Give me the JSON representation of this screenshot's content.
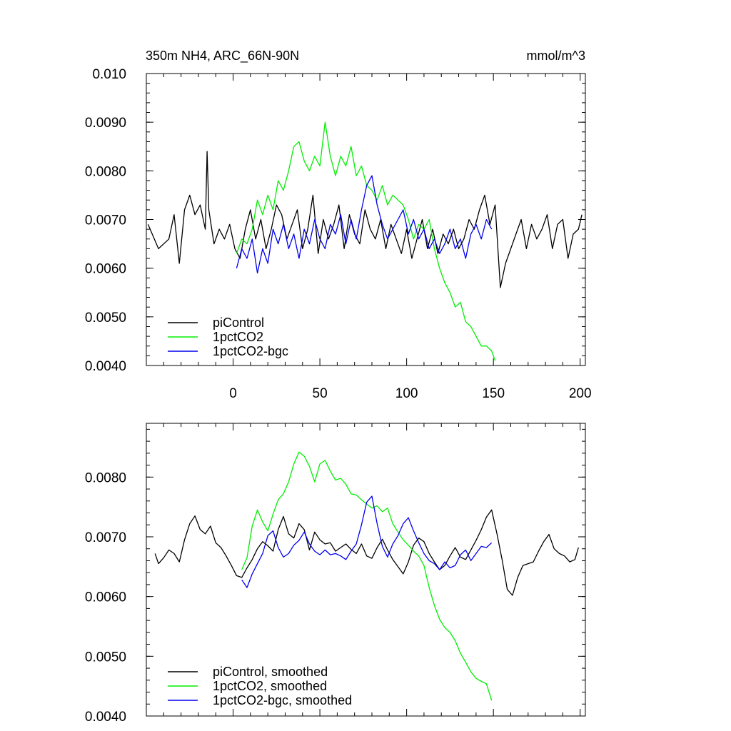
{
  "chart_data": [
    {
      "type": "line",
      "title_left": "350m NH4, ARC_66N-90N",
      "title_right": "mmol/m^3",
      "xlabel": "",
      "ylabel": "",
      "xlim": [
        -50,
        203
      ],
      "ylim": [
        0.004,
        0.01
      ],
      "x_ticks": [
        0,
        50,
        100,
        150,
        200
      ],
      "x_tick_labels": [
        "0",
        "50",
        "100",
        "150",
        "200"
      ],
      "y_ticks": [
        0.004,
        0.005,
        0.006,
        0.007,
        0.008,
        0.009,
        0.01
      ],
      "y_tick_labels": [
        "0.0040",
        "0.0050",
        "0.0060",
        "0.0070",
        "0.0080",
        "0.0090",
        "0.010"
      ],
      "legend_position": "bottom-left",
      "series": [
        {
          "name": "piControl",
          "color": "#000000",
          "x": [
            -49,
            -43,
            -37,
            -34,
            -31,
            -28,
            -25,
            -22,
            -19,
            -16,
            -15,
            -14,
            -11,
            -8,
            -5,
            -2,
            1,
            4,
            7,
            10,
            13,
            16,
            19,
            22,
            25,
            28,
            31,
            34,
            37,
            40,
            43,
            46,
            49,
            52,
            55,
            58,
            61,
            64,
            67,
            70,
            73,
            76,
            79,
            82,
            85,
            88,
            91,
            94,
            97,
            100,
            103,
            106,
            109,
            112,
            115,
            118,
            121,
            124,
            127,
            130,
            133,
            136,
            139,
            142,
            145,
            148,
            151,
            154,
            157,
            160,
            163,
            166,
            169,
            172,
            175,
            178,
            181,
            184,
            187,
            190,
            193,
            196,
            199,
            201
          ],
          "values": [
            0.0069,
            0.0064,
            0.0066,
            0.0071,
            0.0061,
            0.0072,
            0.0075,
            0.0071,
            0.0073,
            0.0068,
            0.0084,
            0.0072,
            0.0065,
            0.0068,
            0.0066,
            0.0069,
            0.0064,
            0.0062,
            0.0068,
            0.0072,
            0.0066,
            0.007,
            0.0064,
            0.0068,
            0.0073,
            0.0071,
            0.0066,
            0.0069,
            0.0072,
            0.0064,
            0.0068,
            0.0075,
            0.0063,
            0.007,
            0.0066,
            0.0069,
            0.0073,
            0.0064,
            0.0071,
            0.0067,
            0.0065,
            0.0072,
            0.0068,
            0.0066,
            0.007,
            0.0064,
            0.0069,
            0.0066,
            0.0063,
            0.0068,
            0.0062,
            0.0066,
            0.007,
            0.0064,
            0.0068,
            0.0063,
            0.0067,
            0.0065,
            0.0068,
            0.0064,
            0.0066,
            0.007,
            0.0068,
            0.0072,
            0.0075,
            0.0069,
            0.0073,
            0.0056,
            0.0061,
            0.0064,
            0.0067,
            0.007,
            0.0064,
            0.0069,
            0.0066,
            0.0068,
            0.0071,
            0.0064,
            0.0069,
            0.007,
            0.0062,
            0.0067,
            0.0068,
            0.0071
          ]
        },
        {
          "name": "1pctCO2",
          "color": "#00ee00",
          "x": [
            2,
            5,
            8,
            11,
            14,
            17,
            20,
            23,
            26,
            29,
            32,
            35,
            38,
            41,
            44,
            47,
            50,
            53,
            56,
            59,
            62,
            65,
            68,
            71,
            74,
            77,
            80,
            83,
            86,
            89,
            92,
            95,
            98,
            101,
            104,
            107,
            110,
            113,
            116,
            119,
            122,
            125,
            128,
            131,
            134,
            137,
            140,
            143,
            146,
            149,
            151
          ],
          "values": [
            0.0063,
            0.0066,
            0.0065,
            0.0068,
            0.0074,
            0.0071,
            0.0075,
            0.0072,
            0.0078,
            0.0076,
            0.008,
            0.0085,
            0.0086,
            0.0082,
            0.008,
            0.0083,
            0.0081,
            0.009,
            0.0083,
            0.0079,
            0.0083,
            0.0081,
            0.0085,
            0.0079,
            0.0081,
            0.0077,
            0.0076,
            0.0074,
            0.0077,
            0.0073,
            0.0075,
            0.0074,
            0.0073,
            0.007,
            0.0066,
            0.0069,
            0.0068,
            0.007,
            0.0064,
            0.006,
            0.0057,
            0.0055,
            0.0052,
            0.0053,
            0.0049,
            0.0048,
            0.0046,
            0.0044,
            0.0044,
            0.0043,
            0.0041
          ]
        },
        {
          "name": "1pctCO2-bgc",
          "color": "#0000ee",
          "x": [
            2,
            5,
            8,
            11,
            14,
            17,
            20,
            23,
            26,
            29,
            32,
            35,
            38,
            41,
            44,
            47,
            50,
            53,
            56,
            59,
            62,
            65,
            68,
            71,
            74,
            77,
            80,
            83,
            86,
            89,
            92,
            95,
            98,
            101,
            104,
            107,
            110,
            113,
            116,
            119,
            122,
            125,
            128,
            131,
            134,
            137,
            140,
            143,
            146,
            149
          ],
          "values": [
            0.006,
            0.0064,
            0.0062,
            0.0066,
            0.0059,
            0.0064,
            0.0061,
            0.0068,
            0.0065,
            0.0069,
            0.0064,
            0.0067,
            0.0062,
            0.0068,
            0.0065,
            0.007,
            0.0066,
            0.0064,
            0.0069,
            0.0067,
            0.0071,
            0.0065,
            0.007,
            0.0066,
            0.0072,
            0.0077,
            0.0079,
            0.0073,
            0.0069,
            0.0066,
            0.0068,
            0.007,
            0.0072,
            0.0067,
            0.007,
            0.0066,
            0.0068,
            0.0064,
            0.0066,
            0.0063,
            0.0065,
            0.0068,
            0.0064,
            0.0066,
            0.0062,
            0.0067,
            0.0069,
            0.0066,
            0.007,
            0.0068
          ]
        }
      ]
    },
    {
      "type": "line",
      "xlabel": "",
      "ylabel": "",
      "xlim": [
        -50,
        203
      ],
      "ylim": [
        0.004,
        0.0089
      ],
      "x_ticks": [
        0,
        50,
        100,
        150,
        200
      ],
      "y_ticks": [
        0.004,
        0.005,
        0.006,
        0.007,
        0.008
      ],
      "y_tick_labels": [
        "0.0040",
        "0.0050",
        "0.0060",
        "0.0070",
        "0.0080"
      ],
      "legend_position": "bottom-left",
      "series": [
        {
          "name": "piControl, smoothed",
          "color": "#000000",
          "x": [
            -45,
            -43,
            -40,
            -37,
            -34,
            -31,
            -28,
            -25,
            -22,
            -19,
            -16,
            -13,
            -10,
            -7,
            -4,
            -1,
            2,
            5,
            8,
            11,
            14,
            17,
            20,
            23,
            26,
            29,
            32,
            35,
            38,
            41,
            44,
            47,
            50,
            53,
            56,
            59,
            62,
            65,
            68,
            71,
            74,
            77,
            80,
            83,
            86,
            89,
            92,
            95,
            98,
            101,
            104,
            107,
            110,
            113,
            116,
            119,
            122,
            125,
            128,
            131,
            134,
            137,
            140,
            143,
            146,
            149,
            152,
            155,
            158,
            161,
            164,
            167,
            170,
            173,
            176,
            179,
            182,
            185,
            188,
            191,
            194,
            197,
            199
          ],
          "values": [
            0.00672,
            0.00655,
            0.00665,
            0.00678,
            0.00672,
            0.00658,
            0.00695,
            0.00722,
            0.00735,
            0.00712,
            0.00705,
            0.00718,
            0.0069,
            0.00682,
            0.00668,
            0.00652,
            0.00635,
            0.00632,
            0.00648,
            0.00662,
            0.0068,
            0.00692,
            0.00685,
            0.00676,
            0.00712,
            0.00734,
            0.00705,
            0.00698,
            0.00722,
            0.00712,
            0.00678,
            0.00708,
            0.00695,
            0.00688,
            0.0069,
            0.00676,
            0.00682,
            0.00688,
            0.00679,
            0.00672,
            0.00688,
            0.00668,
            0.00664,
            0.00682,
            0.00696,
            0.00678,
            0.00662,
            0.0065,
            0.00638,
            0.00658,
            0.00686,
            0.00698,
            0.00692,
            0.00672,
            0.00658,
            0.00645,
            0.00652,
            0.00668,
            0.00682,
            0.00666,
            0.00662,
            0.00678,
            0.00694,
            0.00712,
            0.00733,
            0.00745,
            0.00706,
            0.00662,
            0.00612,
            0.00602,
            0.00632,
            0.00652,
            0.00655,
            0.00658,
            0.00676,
            0.00692,
            0.00704,
            0.0068,
            0.00672,
            0.00668,
            0.00658,
            0.00662,
            0.00682
          ]
        },
        {
          "name": "1pctCO2, smoothed",
          "color": "#00ee00",
          "x": [
            5,
            8,
            11,
            14,
            17,
            20,
            23,
            26,
            29,
            32,
            35,
            38,
            41,
            44,
            47,
            50,
            53,
            56,
            59,
            62,
            65,
            68,
            71,
            74,
            77,
            80,
            83,
            86,
            89,
            92,
            95,
            98,
            101,
            104,
            107,
            110,
            113,
            116,
            119,
            122,
            125,
            128,
            131,
            134,
            137,
            140,
            143,
            146,
            149
          ],
          "values": [
            0.00645,
            0.00665,
            0.00718,
            0.00745,
            0.00725,
            0.0071,
            0.00738,
            0.00762,
            0.00772,
            0.00792,
            0.00822,
            0.00842,
            0.00835,
            0.00818,
            0.00792,
            0.00822,
            0.00828,
            0.0081,
            0.00795,
            0.00798,
            0.00788,
            0.00772,
            0.0077,
            0.00762,
            0.00755,
            0.00748,
            0.00752,
            0.00742,
            0.00748,
            0.00722,
            0.00708,
            0.00695,
            0.00686,
            0.00676,
            0.00668,
            0.00652,
            0.00615,
            0.00585,
            0.00562,
            0.00548,
            0.0054,
            0.00526,
            0.00505,
            0.0049,
            0.00474,
            0.00463,
            0.00458,
            0.00454,
            0.00426
          ]
        },
        {
          "name": "1pctCO2-bgc, smoothed",
          "color": "#0000ee",
          "x": [
            5,
            8,
            11,
            14,
            17,
            20,
            23,
            26,
            29,
            32,
            35,
            38,
            41,
            44,
            47,
            50,
            53,
            56,
            59,
            62,
            65,
            68,
            71,
            74,
            77,
            80,
            83,
            86,
            89,
            92,
            95,
            98,
            101,
            104,
            107,
            110,
            113,
            116,
            119,
            122,
            125,
            128,
            131,
            134,
            137,
            140,
            143,
            146,
            149
          ],
          "values": [
            0.00628,
            0.00615,
            0.00638,
            0.00655,
            0.00672,
            0.00702,
            0.0071,
            0.00682,
            0.00666,
            0.00672,
            0.00686,
            0.00694,
            0.00708,
            0.00688,
            0.00676,
            0.0067,
            0.00678,
            0.0067,
            0.00672,
            0.00668,
            0.00662,
            0.00676,
            0.00688,
            0.0072,
            0.00758,
            0.00768,
            0.00722,
            0.00684,
            0.00666,
            0.00688,
            0.00702,
            0.00722,
            0.00732,
            0.0071,
            0.0069,
            0.00672,
            0.0066,
            0.00655,
            0.00645,
            0.00658,
            0.00648,
            0.00652,
            0.0067,
            0.00678,
            0.0066,
            0.00672,
            0.00684,
            0.00682,
            0.0069
          ]
        }
      ]
    }
  ]
}
